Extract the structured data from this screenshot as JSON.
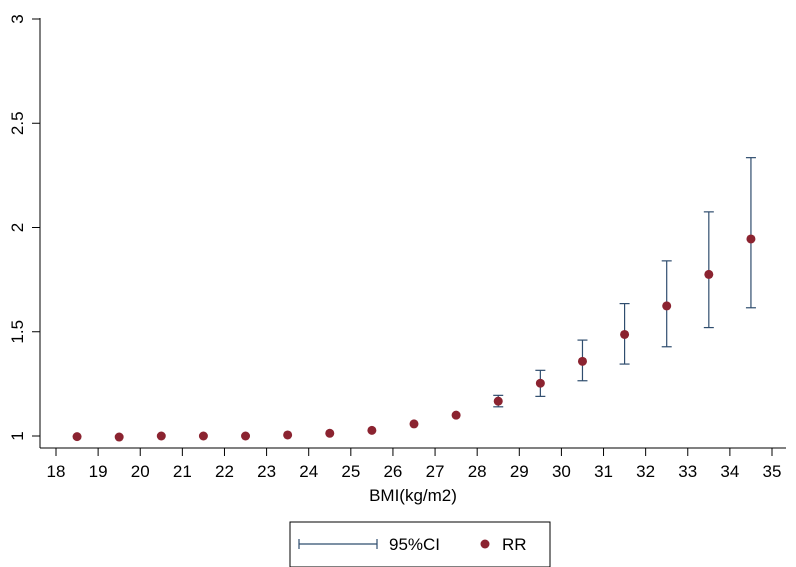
{
  "chart_data": {
    "type": "scatter",
    "title": "",
    "xlabel": "BMI(kg/m2)",
    "ylabel": "",
    "xlim": [
      18,
      35
    ],
    "ylim": [
      1,
      3
    ],
    "x_ticks": [
      "18",
      "19",
      "20",
      "21",
      "22",
      "23",
      "24",
      "25",
      "26",
      "27",
      "28",
      "29",
      "30",
      "31",
      "32",
      "33",
      "34",
      "35"
    ],
    "y_ticks": [
      "1",
      "1.5",
      "2",
      "2.5",
      "3"
    ],
    "grid": false,
    "legend_position": "bottom",
    "series": [
      {
        "name": "RR",
        "color": "#8b2330",
        "x": [
          18.5,
          19.5,
          20.5,
          21.5,
          22.5,
          23.5,
          24.5,
          25.5,
          26.5,
          27.5,
          28.5,
          29.5,
          30.5,
          31.5,
          32.5,
          33.5,
          34.5
        ],
        "y": [
          0.997,
          0.995,
          1.0,
          1.0,
          1.0,
          1.005,
          1.013,
          1.027,
          1.058,
          1.1,
          1.167,
          1.253,
          1.358,
          1.487,
          1.624,
          1.775,
          1.945
        ]
      },
      {
        "name": "95%CI",
        "color": "#2f4d6e",
        "x": [
          18.5,
          19.5,
          20.5,
          21.5,
          22.5,
          23.5,
          24.5,
          25.5,
          26.5,
          27.5,
          28.5,
          29.5,
          30.5,
          31.5,
          32.5,
          33.5,
          34.5
        ],
        "lower": [
          0.997,
          0.995,
          1.0,
          1.0,
          1.0,
          1.005,
          1.013,
          1.027,
          1.058,
          1.1,
          1.14,
          1.19,
          1.265,
          1.345,
          1.428,
          1.52,
          1.615
        ],
        "upper": [
          0.997,
          0.995,
          1.0,
          1.0,
          1.0,
          1.005,
          1.013,
          1.027,
          1.058,
          1.1,
          1.195,
          1.315,
          1.46,
          1.635,
          1.84,
          2.075,
          2.335
        ]
      }
    ],
    "legend": [
      {
        "label": "95%CI",
        "symbol": "capped-line"
      },
      {
        "label": "RR",
        "symbol": "dot"
      }
    ]
  }
}
